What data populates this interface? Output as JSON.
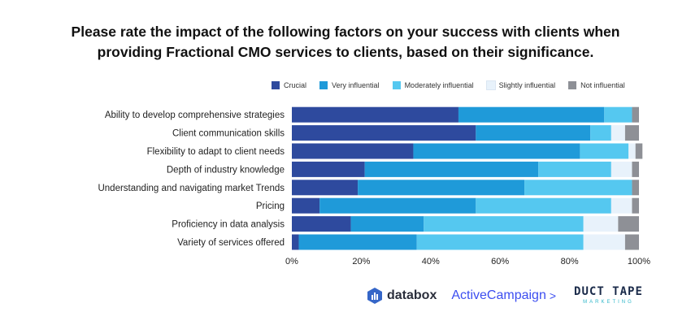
{
  "title": {
    "line1": "Please rate the impact of the following factors on your success with clients when",
    "line2": "providing Fractional CMO services to clients, based on their significance."
  },
  "colors": {
    "crucial": "#2e4a9e",
    "very": "#1f9ad9",
    "moderately": "#55c8f0",
    "slightly": "#e8f2fb",
    "not": "#8e9096"
  },
  "chart_data": {
    "type": "bar",
    "orientation": "horizontal",
    "stacked": true,
    "categories": [
      "Ability to develop comprehensive strategies",
      "Client communication skills",
      "Flexibility to adapt to client needs",
      "Depth of industry knowledge",
      "Understanding and navigating market Trends",
      "Pricing",
      "Proficiency in data analysis",
      "Variety of services offered"
    ],
    "series": [
      {
        "name": "Crucial",
        "color_key": "crucial",
        "values": [
          48,
          53,
          35,
          21,
          19,
          8,
          17,
          2
        ]
      },
      {
        "name": "Very influential",
        "color_key": "very",
        "values": [
          42,
          33,
          48,
          50,
          48,
          45,
          21,
          34
        ]
      },
      {
        "name": "Moderately influential",
        "color_key": "moderately",
        "values": [
          8,
          6,
          14,
          21,
          31,
          39,
          46,
          48
        ]
      },
      {
        "name": "Slightly influential",
        "color_key": "slightly",
        "values": [
          0,
          4,
          2,
          6,
          0,
          6,
          10,
          12
        ]
      },
      {
        "name": "Not influential",
        "color_key": "not",
        "values": [
          2,
          4,
          2,
          2,
          2,
          2,
          6,
          4
        ]
      }
    ],
    "xlim": [
      0,
      100
    ],
    "xticks": [
      "0%",
      "20%",
      "40%",
      "60%",
      "80%",
      "100%"
    ],
    "legend_position": "top-right",
    "grid": false
  },
  "logos": {
    "databox": "databox",
    "activecampaign": "ActiveCampaign",
    "activecampaign_mark": ">",
    "ducttape_top": "DUCT TAPE",
    "ducttape_bottom": "MARKETING"
  }
}
